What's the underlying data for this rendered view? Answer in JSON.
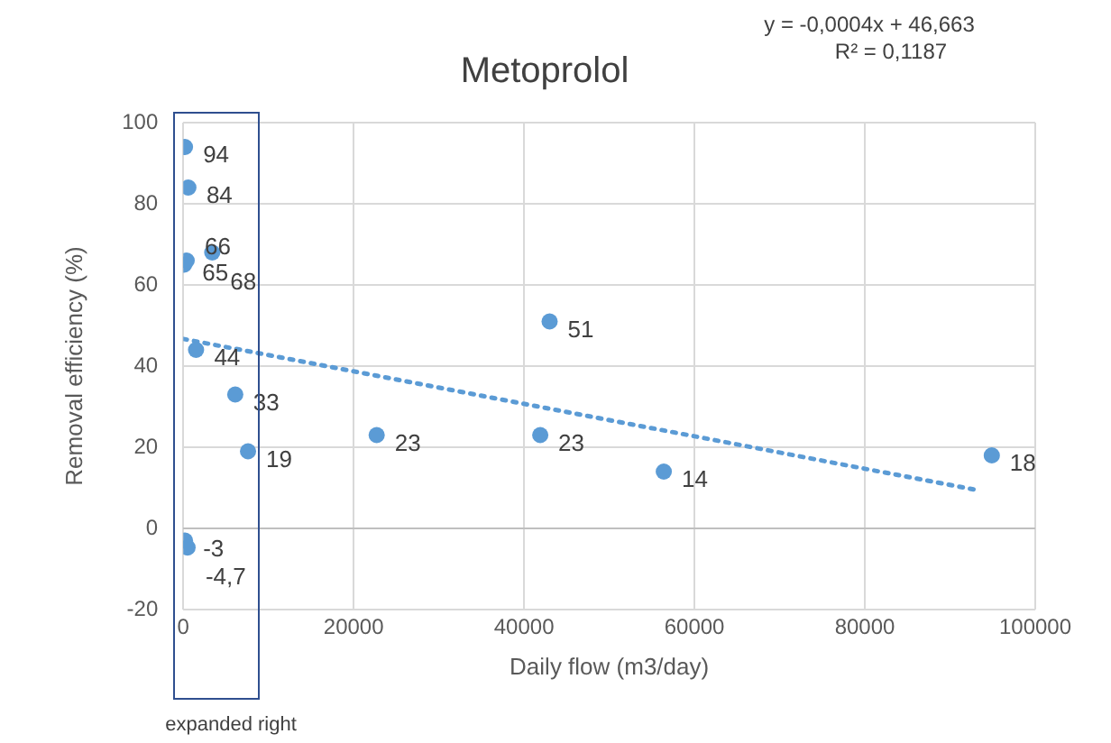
{
  "chart_data": {
    "type": "scatter",
    "title": "Metoprolol",
    "xlabel": "Daily flow (m3/day)",
    "ylabel": "Removal efficiency (%)",
    "annotations": [
      "y = -0,0004x + 46,663",
      "R² = 0,1187",
      "expanded right"
    ],
    "series": [
      {
        "type": "scatter",
        "color": "#5b9bd5",
        "x": [
          200,
          600,
          100,
          400,
          3400,
          1500,
          6100,
          7600,
          200,
          500,
          22700,
          41900,
          43000,
          56400,
          94900
        ],
        "values": [
          94,
          84,
          65,
          66,
          68,
          44,
          33,
          19,
          -3,
          -4.7,
          23,
          23,
          51,
          14,
          18
        ],
        "value_labels": [
          "94",
          "84",
          "65",
          "66",
          "68",
          "44",
          "33",
          "19",
          "-3",
          "-4,7",
          "23",
          "23",
          "51",
          "14",
          "18"
        ],
        "marker": "circle"
      },
      {
        "type": "line",
        "color": "#5b9bd5",
        "x": [
          0,
          93000
        ],
        "values": [
          46.7,
          9.5
        ],
        "line_style": "dotted",
        "marker": "none"
      }
    ],
    "xlim": [
      0,
      100000
    ],
    "xticks": [
      0,
      20000,
      40000,
      60000,
      80000,
      100000
    ],
    "ylim": [
      -20,
      100
    ],
    "yticks": [
      -20,
      0,
      20,
      40,
      60,
      80,
      100
    ],
    "grid": true,
    "legend": false
  }
}
